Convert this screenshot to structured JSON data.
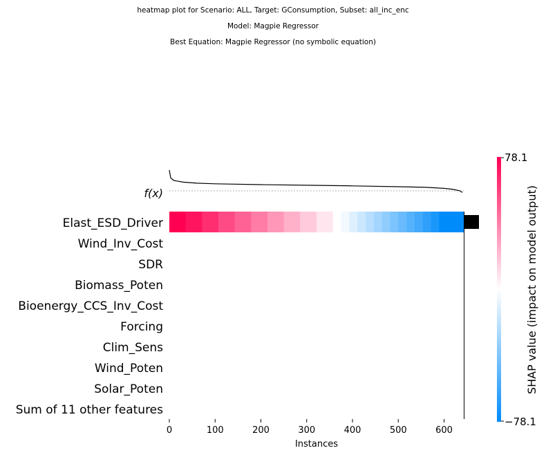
{
  "titles": {
    "line1": "heatmap plot for Scenario: ALL, Target: GConsumption, Subset: all_inc_enc",
    "line2": "Model: Magpie Regressor",
    "line3": "Best Equation: Magpie Regressor (no symbolic equation)"
  },
  "chart_data": {
    "type": "heatmap",
    "xlabel": "Instances",
    "x_ticks": [
      0,
      100,
      200,
      300,
      400,
      500,
      600
    ],
    "xlim": [
      0,
      643
    ],
    "fx_label": "f(x)",
    "features": [
      "Elast_ESD_Driver",
      "Wind_Inv_Cost",
      "SDR",
      "Biomass_Poten",
      "Bioenergy_CCS_Inv_Cost",
      "Forcing",
      "Clim_Sens",
      "Wind_Poten",
      "Solar_Poten",
      "Sum of 11 other features"
    ],
    "heatmap_rows": [
      {
        "feature": "Elast_ESD_Driver",
        "shap_values": [
          78.1,
          78.1,
          72,
          72,
          64,
          64,
          55,
          55,
          48,
          48,
          40,
          40,
          32,
          32,
          24,
          24,
          16,
          16,
          8,
          8,
          0,
          -4,
          -10,
          -16,
          -22,
          -28,
          -34,
          -40,
          -46,
          -52,
          -58,
          -64,
          -70,
          -78.1,
          -78.1,
          -78.1
        ]
      }
    ],
    "fx_curve": [
      [
        0,
        1.0
      ],
      [
        3,
        0.62
      ],
      [
        10,
        0.5
      ],
      [
        30,
        0.42
      ],
      [
        60,
        0.37
      ],
      [
        100,
        0.34
      ],
      [
        200,
        0.3
      ],
      [
        300,
        0.27
      ],
      [
        400,
        0.24
      ],
      [
        500,
        0.2
      ],
      [
        560,
        0.17
      ],
      [
        600,
        0.12
      ],
      [
        620,
        0.07
      ],
      [
        635,
        0.0
      ],
      [
        640,
        -0.08
      ]
    ],
    "feature_importance": [
      78.1,
      0,
      0,
      0,
      0,
      0,
      0,
      0,
      0,
      0
    ],
    "colorbar": {
      "label": "SHAP value (impact on model output)",
      "max_label": "78.1",
      "min_label": "−78.1",
      "vmin": -78.1,
      "vmax": 78.1,
      "colors": [
        "#008bfb",
        "#ffffff",
        "#ff0052"
      ]
    },
    "grid": false,
    "legend": "none"
  }
}
